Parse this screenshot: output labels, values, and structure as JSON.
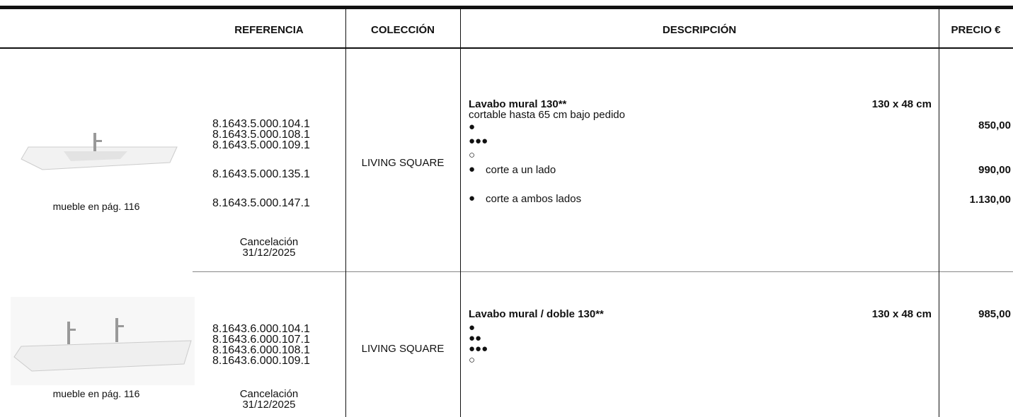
{
  "header": {
    "columns": [
      "REFERENCIA",
      "COLECCIÓN",
      "DESCRIPCIÓN",
      "PRECIO €"
    ]
  },
  "rows": [
    {
      "image_caption": "mueble en pág. 116",
      "references": [
        "8.1643.5.000.104.1",
        "8.1643.5.000.108.1",
        "8.1643.5.000.109.1",
        "8.1643.5.000.135.1",
        "8.1643.5.000.147.1"
      ],
      "cancellation": {
        "label": "Cancelación",
        "date": "31/12/2025"
      },
      "collection": "LIVING SQUARE",
      "description": {
        "title": "Lavabo mural 130**",
        "size": "130 x 48 cm",
        "note": "cortable hasta 65 cm bajo pedido",
        "lines": [
          {
            "symbol": "●"
          },
          {
            "symbol": "●●●"
          },
          {
            "symbol": "○"
          },
          {
            "symbol": "●",
            "text": "corte a un lado"
          },
          {
            "symbol": "●",
            "text": "corte a ambos lados"
          }
        ]
      },
      "prices": [
        "850,00",
        "990,00",
        "1.130,00"
      ]
    },
    {
      "image_caption": "mueble en pág. 116",
      "references": [
        "8.1643.6.000.104.1",
        "8.1643.6.000.107.1",
        "8.1643.6.000.108.1",
        "8.1643.6.000.109.1"
      ],
      "cancellation": {
        "label": "Cancelación",
        "date": "31/12/2025"
      },
      "collection": "LIVING SQUARE",
      "description": {
        "title": "Lavabo mural / doble 130**",
        "size": "130 x 48 cm",
        "lines": [
          {
            "symbol": "●"
          },
          {
            "symbol": "●●"
          },
          {
            "symbol": "●●●"
          },
          {
            "symbol": "○"
          }
        ]
      },
      "prices": [
        "985,00"
      ]
    }
  ]
}
